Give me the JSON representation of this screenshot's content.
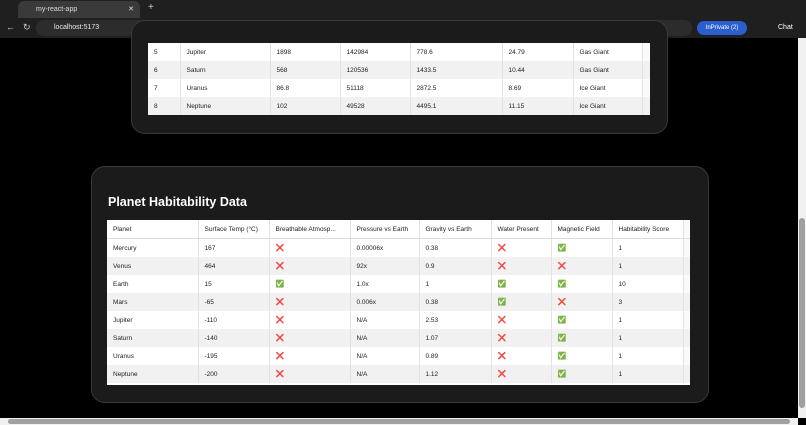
{
  "browser": {
    "tab_title": "my-react-app",
    "url": "localhost:5173",
    "inprivate": "InPrivate (2)",
    "chat": "Chat"
  },
  "planets_table": {
    "rows": [
      [
        "5",
        "Jupiter",
        "1898",
        "142984",
        "778.6",
        "24.79",
        "Gas Giant"
      ],
      [
        "6",
        "Saturn",
        "568",
        "120536",
        "1433.5",
        "10.44",
        "Gas Giant"
      ],
      [
        "7",
        "Uranus",
        "86.8",
        "51118",
        "2872.5",
        "8.69",
        "Ice Giant"
      ],
      [
        "8",
        "Neptune",
        "102",
        "49528",
        "4495.1",
        "11.15",
        "Ice Giant"
      ]
    ]
  },
  "habitability": {
    "title": "Planet Habitability Data",
    "columns": [
      "Planet",
      "Surface Temp (°C)",
      "Breathable Atmosp...",
      "Pressure vs Earth",
      "Gravity vs Earth",
      "Water Present",
      "Magnetic Field",
      "Habitability Score"
    ],
    "rows": [
      [
        "Mercury",
        "167",
        "❌",
        "0.00006x",
        "0.38",
        "❌",
        "✅",
        "1"
      ],
      [
        "Venus",
        "464",
        "❌",
        "92x",
        "0.9",
        "❌",
        "❌",
        "1"
      ],
      [
        "Earth",
        "15",
        "✅",
        "1.0x",
        "1",
        "✅",
        "✅",
        "10"
      ],
      [
        "Mars",
        "-65",
        "❌",
        "0.006x",
        "0.38",
        "✅",
        "❌",
        "3"
      ],
      [
        "Jupiter",
        "-110",
        "❌",
        "N/A",
        "2.53",
        "❌",
        "✅",
        "1"
      ],
      [
        "Saturn",
        "-140",
        "❌",
        "N/A",
        "1.07",
        "❌",
        "✅",
        "1"
      ],
      [
        "Uranus",
        "-195",
        "❌",
        "N/A",
        "0.89",
        "❌",
        "✅",
        "1"
      ],
      [
        "Neptune",
        "-200",
        "❌",
        "N/A",
        "1.12",
        "❌",
        "✅",
        "1"
      ]
    ]
  }
}
